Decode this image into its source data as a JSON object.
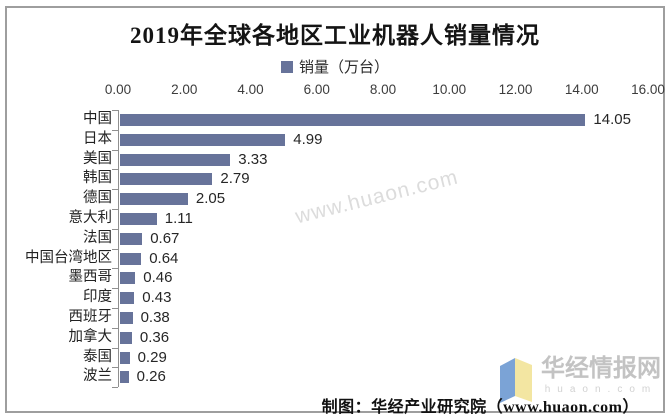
{
  "header": {
    "title": "2019年全球各地区工业机器人销量情况"
  },
  "legend": {
    "label": "销量（万台）",
    "swatch_color": "#67739a"
  },
  "chart_data": {
    "type": "bar",
    "orientation": "horizontal",
    "title": "2019年全球各地区工业机器人销量情况",
    "series_name": "销量（万台）",
    "categories": [
      "中国",
      "日本",
      "美国",
      "韩国",
      "德国",
      "意大利",
      "法国",
      "中国台湾地区",
      "墨西哥",
      "印度",
      "西班牙",
      "加拿大",
      "泰国",
      "波兰"
    ],
    "values": [
      14.05,
      4.99,
      3.33,
      2.79,
      2.05,
      1.11,
      0.67,
      0.64,
      0.46,
      0.43,
      0.38,
      0.36,
      0.29,
      0.26
    ],
    "x_ticks": [
      "0.00",
      "2.00",
      "4.00",
      "6.00",
      "8.00",
      "10.00",
      "12.00",
      "14.00",
      "16.00"
    ],
    "xlim": [
      0,
      16
    ],
    "bar_color": "#67739a",
    "grid": false,
    "legend_position": "top",
    "value_labels": "right-of-bar"
  },
  "watermark": {
    "diagonal_text": "www.huaon.com"
  },
  "footer": {
    "attribution": "制图：华经产业研究院（www.huaon.com）"
  },
  "logo": {
    "name": "华经情报网",
    "domain": "huaon.com",
    "book_blue": "#7ba3d6",
    "book_yellow": "#f3e6a2"
  }
}
